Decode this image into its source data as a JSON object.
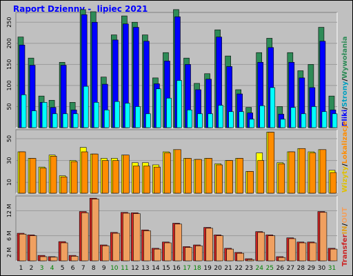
{
  "header": {
    "title": "Raport Dzienny -  lipiec 2021"
  },
  "colors": {
    "background": "#c0c0c0",
    "title": "#0000ff",
    "wizyty": "#ffff00",
    "pliki": "#0000ff",
    "strony": "#00ffff",
    "wywolania": "#2e8b57",
    "lokalizacje": "#ff8c00",
    "transfer_in": "#cc2222",
    "transfer_out": "#f0a060",
    "weekend_label": "#008000"
  },
  "legends": {
    "top": [
      {
        "key": "pliki",
        "text": "Pliki",
        "color": "#0000ff"
      },
      {
        "key": "sep1",
        "text": "/",
        "color": "#000000"
      },
      {
        "key": "strony",
        "text": "Strony",
        "color": "#00a0c0"
      },
      {
        "key": "sep2",
        "text": "/",
        "color": "#000000"
      },
      {
        "key": "wywolania",
        "text": "Wywołania",
        "color": "#2e8b57"
      }
    ],
    "middle": [
      {
        "key": "wizyty",
        "text": "Wizyty",
        "color": "#e0c000"
      },
      {
        "key": "sep1",
        "text": "/",
        "color": "#000000"
      },
      {
        "key": "lokalizacje",
        "text": "Lokalizacje",
        "color": "#ff8c00"
      }
    ],
    "bottom": [
      {
        "key": "transfer",
        "text": "Transfer",
        "color": "#cc2222"
      },
      {
        "key": "in",
        "text": "IN",
        "color": "#e0a020"
      },
      {
        "key": "sep",
        "text": "/",
        "color": "#000000"
      },
      {
        "key": "out",
        "text": "OUT",
        "color": "#f0a060"
      }
    ]
  },
  "chart_data": [
    {
      "type": "bar",
      "panel": "requests",
      "categories": [
        "1",
        "2",
        "3",
        "4",
        "5",
        "6",
        "7",
        "8",
        "9",
        "10",
        "11",
        "12",
        "13",
        "14",
        "15",
        "16",
        "17",
        "18",
        "19",
        "20",
        "21",
        "22",
        "23",
        "24",
        "25",
        "26",
        "27",
        "28",
        "29",
        "30",
        "31"
      ],
      "weekend_days": [
        "3",
        "4",
        "10",
        "11",
        "17",
        "18",
        "24",
        "25",
        "31"
      ],
      "ylim": [
        0,
        270
      ],
      "yticks": [
        50,
        100,
        150,
        200,
        250
      ],
      "series": [
        {
          "name": "Wywołania",
          "color": "#2e8b57",
          "values": [
            215,
            165,
            75,
            65,
            155,
            60,
            280,
            275,
            120,
            220,
            265,
            250,
            220,
            118,
            178,
            280,
            165,
            105,
            128,
            232,
            170,
            90,
            48,
            178,
            212,
            50,
            178,
            135,
            150,
            238,
            75
          ]
        },
        {
          "name": "Pliki",
          "color": "#0000ff",
          "values": [
            196,
            148,
            60,
            48,
            148,
            42,
            268,
            250,
            103,
            208,
            246,
            238,
            205,
            104,
            158,
            263,
            150,
            90,
            115,
            215,
            145,
            80,
            35,
            155,
            190,
            32,
            155,
            118,
            95,
            205,
            42
          ]
        },
        {
          "name": "Strony",
          "color": "#00ffff",
          "values": [
            78,
            40,
            60,
            33,
            33,
            33,
            98,
            60,
            42,
            62,
            58,
            50,
            33,
            92,
            70,
            112,
            42,
            33,
            33,
            53,
            38,
            38,
            20,
            52,
            95,
            20,
            48,
            33,
            50,
            38,
            33
          ]
        }
      ]
    },
    {
      "type": "bar",
      "panel": "visits",
      "categories": [
        "1",
        "2",
        "3",
        "4",
        "5",
        "6",
        "7",
        "8",
        "9",
        "10",
        "11",
        "12",
        "13",
        "14",
        "15",
        "16",
        "17",
        "18",
        "19",
        "20",
        "21",
        "22",
        "23",
        "24",
        "25",
        "26",
        "27",
        "28",
        "29",
        "30",
        "31"
      ],
      "ylim": [
        0,
        57
      ],
      "yticks": [
        10,
        30,
        50
      ],
      "series": [
        {
          "name": "Wizyty",
          "color": "#ffff00",
          "values": [
            38,
            32,
            24,
            35,
            16,
            30,
            42,
            36,
            32,
            32,
            35,
            28,
            28,
            26,
            38,
            40,
            32,
            31,
            32,
            27,
            30,
            32,
            20,
            37,
            56,
            28,
            38,
            41,
            38,
            40,
            21
          ]
        },
        {
          "name": "Lokalizacje",
          "color": "#ff8c00",
          "values": [
            38,
            32,
            23,
            34,
            15,
            29,
            38,
            36,
            30,
            30,
            35,
            25,
            25,
            24,
            37,
            40,
            32,
            31,
            32,
            26,
            30,
            32,
            20,
            30,
            56,
            27,
            38,
            41,
            37,
            40,
            19
          ]
        }
      ]
    },
    {
      "type": "bar",
      "panel": "transfer",
      "categories": [
        "1",
        "2",
        "3",
        "4",
        "5",
        "6",
        "7",
        "8",
        "9",
        "10",
        "11",
        "12",
        "13",
        "14",
        "15",
        "16",
        "17",
        "18",
        "19",
        "20",
        "21",
        "22",
        "23",
        "24",
        "25",
        "26",
        "27",
        "28",
        "29",
        "30",
        "31"
      ],
      "ylim": [
        0,
        15.2
      ],
      "yticks_labels": [
        "2 M",
        "6 M",
        "12 M"
      ],
      "yticks": [
        2,
        6,
        12
      ],
      "series": [
        {
          "name": "IN",
          "color": "#cc2222",
          "values": [
            6.6,
            6.2,
            1.3,
            1.0,
            4.6,
            1.3,
            11.8,
            15.0,
            3.8,
            6.8,
            11.6,
            11.5,
            7.4,
            3.0,
            4.5,
            9.0,
            3.4,
            3.8,
            8.0,
            6.2,
            3.0,
            2.0,
            0.5,
            7.0,
            6.2,
            1.0,
            5.5,
            4.5,
            4.5,
            11.8,
            3.0
          ]
        },
        {
          "name": "OUT",
          "color": "#f0a060",
          "values": [
            6.4,
            6.0,
            1.0,
            0.9,
            4.3,
            1.1,
            11.5,
            14.8,
            3.6,
            6.6,
            11.4,
            11.3,
            7.2,
            2.8,
            4.3,
            8.8,
            3.2,
            3.6,
            7.8,
            6.0,
            2.8,
            1.8,
            0.3,
            6.8,
            6.0,
            0.8,
            5.3,
            4.3,
            4.3,
            11.6,
            2.8
          ]
        }
      ]
    }
  ]
}
